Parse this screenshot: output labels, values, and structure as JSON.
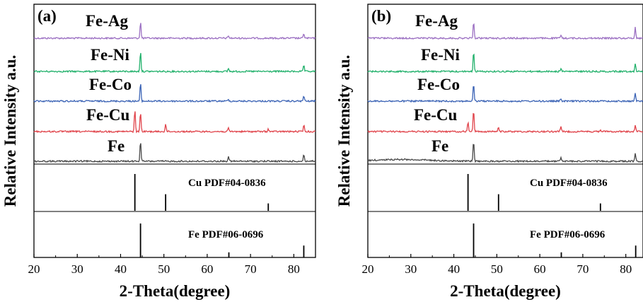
{
  "chart_data": [
    {
      "type": "line",
      "panel_label": "(a)",
      "ylabel": "Relative Intensity a.u.",
      "xlabel": "2-Theta(degree)",
      "xlim": [
        20,
        85
      ],
      "xticks": [
        20,
        30,
        40,
        50,
        60,
        70,
        80
      ],
      "series": [
        {
          "name": "Fe-Ag",
          "color": "#9b6fc2",
          "peaks": [
            [
              44.6,
              1.0
            ],
            [
              64.9,
              0.15
            ],
            [
              82.3,
              0.3
            ]
          ]
        },
        {
          "name": "Fe-Ni",
          "color": "#20b06a",
          "peaks": [
            [
              44.6,
              1.0
            ],
            [
              64.9,
              0.15
            ],
            [
              82.3,
              0.3
            ]
          ]
        },
        {
          "name": "Fe-Co",
          "color": "#3b63b5",
          "peaks": [
            [
              44.6,
              1.0
            ],
            [
              64.9,
              0.1
            ],
            [
              82.3,
              0.3
            ]
          ]
        },
        {
          "name": "Fe-Cu",
          "color": "#e0434a",
          "peaks": [
            [
              43.3,
              1.0
            ],
            [
              44.6,
              0.9
            ],
            [
              50.4,
              0.35
            ],
            [
              64.9,
              0.15
            ],
            [
              74.1,
              0.12
            ],
            [
              82.3,
              0.3
            ]
          ]
        },
        {
          "name": "Fe",
          "color": "#474747",
          "peaks": [
            [
              44.6,
              1.0
            ],
            [
              64.9,
              0.25
            ],
            [
              82.3,
              0.35
            ]
          ]
        }
      ],
      "references": [
        {
          "name": "Cu PDF#04-0836",
          "lines": [
            [
              43.3,
              1.0
            ],
            [
              50.4,
              0.45
            ],
            [
              74.1,
              0.2
            ]
          ]
        },
        {
          "name": "Fe PDF#06-0696",
          "lines": [
            [
              44.6,
              1.0
            ],
            [
              65.0,
              0.15
            ],
            [
              82.3,
              0.35
            ]
          ]
        }
      ]
    },
    {
      "type": "line",
      "panel_label": "(b)",
      "ylabel": "Relative Intensity a.u.",
      "xlabel": "2-Theta(degree)",
      "xlim": [
        20,
        84
      ],
      "xticks": [
        20,
        30,
        40,
        50,
        60,
        70,
        80
      ],
      "series": [
        {
          "name": "Fe-Ag",
          "color": "#9b6fc2",
          "peaks": [
            [
              44.6,
              1.0
            ],
            [
              64.9,
              0.2
            ],
            [
              82.2,
              0.65
            ]
          ]
        },
        {
          "name": "Fe-Ni",
          "color": "#20b06a",
          "peaks": [
            [
              44.6,
              1.0
            ],
            [
              64.9,
              0.15
            ],
            [
              82.2,
              0.4
            ]
          ]
        },
        {
          "name": "Fe-Co",
          "color": "#3b63b5",
          "peaks": [
            [
              44.6,
              1.0
            ],
            [
              64.9,
              0.12
            ],
            [
              82.2,
              0.45
            ]
          ]
        },
        {
          "name": "Fe-Cu",
          "color": "#e0434a",
          "peaks": [
            [
              43.3,
              0.45
            ],
            [
              44.6,
              1.0
            ],
            [
              50.4,
              0.2
            ],
            [
              64.9,
              0.2
            ],
            [
              74.1,
              0.1
            ],
            [
              82.2,
              0.3
            ]
          ]
        },
        {
          "name": "Fe",
          "color": "#474747",
          "peaks": [
            [
              44.6,
              1.0
            ],
            [
              64.9,
              0.15
            ],
            [
              82.2,
              0.4
            ]
          ]
        }
      ],
      "references": [
        {
          "name": "Cu PDF#04-0836",
          "lines": [
            [
              43.3,
              1.0
            ],
            [
              50.4,
              0.45
            ],
            [
              74.1,
              0.2
            ]
          ]
        },
        {
          "name": "Fe PDF#06-0696",
          "lines": [
            [
              44.6,
              1.0
            ],
            [
              65.0,
              0.15
            ],
            [
              82.3,
              0.35
            ]
          ]
        }
      ]
    }
  ]
}
